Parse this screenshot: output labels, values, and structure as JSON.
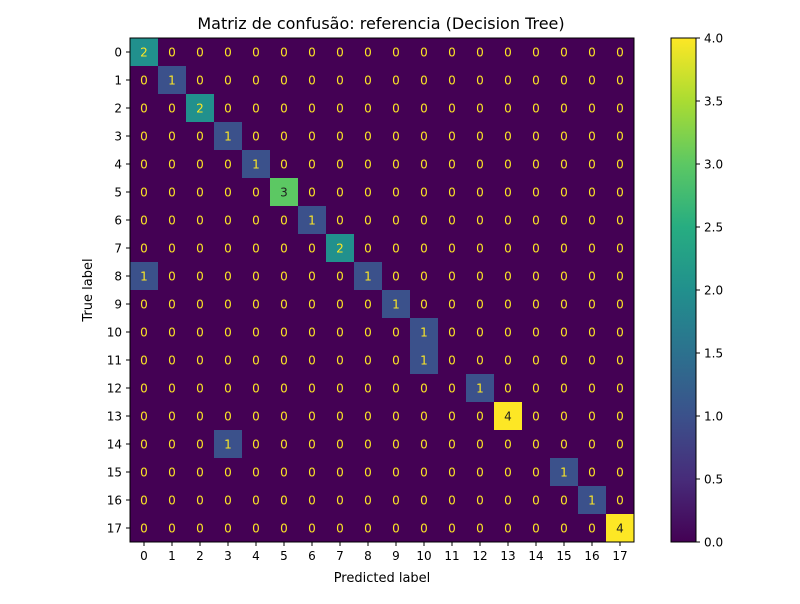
{
  "chart_data": {
    "type": "heatmap",
    "title": "Matriz de confusão: referencia (Decision Tree)",
    "xlabel": "Predicted label",
    "ylabel": "True label",
    "x_tick_labels": [
      "0",
      "1",
      "2",
      "3",
      "4",
      "5",
      "6",
      "7",
      "8",
      "9",
      "10",
      "11",
      "12",
      "13",
      "14",
      "15",
      "16",
      "17"
    ],
    "y_tick_labels": [
      "0",
      "1",
      "2",
      "3",
      "4",
      "5",
      "6",
      "7",
      "8",
      "9",
      "10",
      "11",
      "12",
      "13",
      "14",
      "15",
      "16",
      "17"
    ],
    "matrix": [
      [
        2,
        0,
        0,
        0,
        0,
        0,
        0,
        0,
        0,
        0,
        0,
        0,
        0,
        0,
        0,
        0,
        0,
        0
      ],
      [
        0,
        1,
        0,
        0,
        0,
        0,
        0,
        0,
        0,
        0,
        0,
        0,
        0,
        0,
        0,
        0,
        0,
        0
      ],
      [
        0,
        0,
        2,
        0,
        0,
        0,
        0,
        0,
        0,
        0,
        0,
        0,
        0,
        0,
        0,
        0,
        0,
        0
      ],
      [
        0,
        0,
        0,
        1,
        0,
        0,
        0,
        0,
        0,
        0,
        0,
        0,
        0,
        0,
        0,
        0,
        0,
        0
      ],
      [
        0,
        0,
        0,
        0,
        1,
        0,
        0,
        0,
        0,
        0,
        0,
        0,
        0,
        0,
        0,
        0,
        0,
        0
      ],
      [
        0,
        0,
        0,
        0,
        0,
        3,
        0,
        0,
        0,
        0,
        0,
        0,
        0,
        0,
        0,
        0,
        0,
        0
      ],
      [
        0,
        0,
        0,
        0,
        0,
        0,
        1,
        0,
        0,
        0,
        0,
        0,
        0,
        0,
        0,
        0,
        0,
        0
      ],
      [
        0,
        0,
        0,
        0,
        0,
        0,
        0,
        2,
        0,
        0,
        0,
        0,
        0,
        0,
        0,
        0,
        0,
        0
      ],
      [
        1,
        0,
        0,
        0,
        0,
        0,
        0,
        0,
        1,
        0,
        0,
        0,
        0,
        0,
        0,
        0,
        0,
        0
      ],
      [
        0,
        0,
        0,
        0,
        0,
        0,
        0,
        0,
        0,
        1,
        0,
        0,
        0,
        0,
        0,
        0,
        0,
        0
      ],
      [
        0,
        0,
        0,
        0,
        0,
        0,
        0,
        0,
        0,
        0,
        1,
        0,
        0,
        0,
        0,
        0,
        0,
        0
      ],
      [
        0,
        0,
        0,
        0,
        0,
        0,
        0,
        0,
        0,
        0,
        1,
        0,
        0,
        0,
        0,
        0,
        0,
        0
      ],
      [
        0,
        0,
        0,
        0,
        0,
        0,
        0,
        0,
        0,
        0,
        0,
        0,
        1,
        0,
        0,
        0,
        0,
        0
      ],
      [
        0,
        0,
        0,
        0,
        0,
        0,
        0,
        0,
        0,
        0,
        0,
        0,
        0,
        4,
        0,
        0,
        0,
        0
      ],
      [
        0,
        0,
        0,
        1,
        0,
        0,
        0,
        0,
        0,
        0,
        0,
        0,
        0,
        0,
        0,
        0,
        0,
        0
      ],
      [
        0,
        0,
        0,
        0,
        0,
        0,
        0,
        0,
        0,
        0,
        0,
        0,
        0,
        0,
        0,
        1,
        0,
        0
      ],
      [
        0,
        0,
        0,
        0,
        0,
        0,
        0,
        0,
        0,
        0,
        0,
        0,
        0,
        0,
        0,
        0,
        1,
        0
      ],
      [
        0,
        0,
        0,
        0,
        0,
        0,
        0,
        0,
        0,
        0,
        0,
        0,
        0,
        0,
        0,
        0,
        0,
        4
      ]
    ],
    "colormap": "viridis",
    "colorbar": {
      "range": [
        0.0,
        4.0
      ],
      "tick_values": [
        0.0,
        0.5,
        1.0,
        1.5,
        2.0,
        2.5,
        3.0,
        3.5,
        4.0
      ],
      "tick_labels": [
        "0.0",
        "0.5",
        "1.0",
        "1.5",
        "2.0",
        "2.5",
        "3.0",
        "3.5",
        "4.0"
      ]
    },
    "grid": false,
    "cell_text_colors": {
      "on_dark": "#fde725",
      "on_light": "#1f1f1f"
    }
  }
}
